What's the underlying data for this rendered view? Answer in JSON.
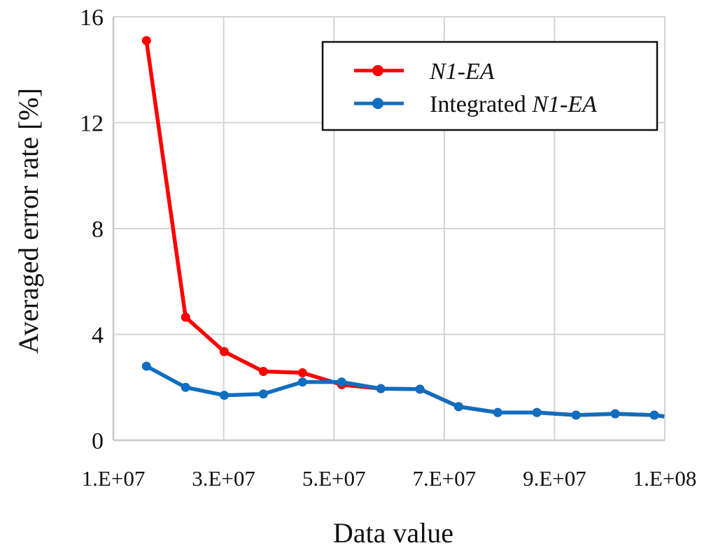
{
  "chart_data": {
    "type": "line",
    "title": "",
    "xlabel": "Data value",
    "ylabel": "Averaged error rate [%]",
    "xlim": [
      10000000,
      110000000
    ],
    "ylim": [
      0,
      16
    ],
    "grid": true,
    "legend_position": "top-right",
    "x_ticks": [
      {
        "value": 10000000,
        "label": "1.E+07"
      },
      {
        "value": 30000000,
        "label": "3.E+07"
      },
      {
        "value": 50000000,
        "label": "5.E+07"
      },
      {
        "value": 70000000,
        "label": "7.E+07"
      },
      {
        "value": 90000000,
        "label": "9.E+07"
      },
      {
        "value": 110000000,
        "label": "1.E+08"
      }
    ],
    "y_ticks": [
      {
        "value": 0,
        "label": "0"
      },
      {
        "value": 4,
        "label": "4"
      },
      {
        "value": 8,
        "label": "8"
      },
      {
        "value": 12,
        "label": "12"
      },
      {
        "value": 16,
        "label": "16"
      }
    ],
    "x": [
      16000000,
      23100000,
      30100000,
      37200000,
      44300000,
      51400000,
      58500000,
      65600000,
      72600000,
      79700000,
      86800000,
      93900000,
      101000000,
      108100000,
      109900000
    ],
    "series": [
      {
        "name": "N1-EA",
        "legend_parts": [
          {
            "text": "N1-EA",
            "italic": true
          }
        ],
        "color": "#ff0000",
        "values": [
          15.1,
          4.65,
          3.35,
          2.6,
          2.55,
          2.1,
          1.95,
          1.93,
          1.27,
          1.05,
          1.05,
          0.95,
          1.0,
          0.95,
          0.9
        ]
      },
      {
        "name": "Integrated N1-EA",
        "legend_parts": [
          {
            "text": "Integrated ",
            "italic": false
          },
          {
            "text": "N1-EA",
            "italic": true
          }
        ],
        "color": "#0f6ebf",
        "values": [
          2.8,
          2.0,
          1.7,
          1.75,
          2.2,
          2.2,
          1.95,
          1.93,
          1.27,
          1.05,
          1.05,
          0.95,
          1.0,
          0.95,
          0.9
        ]
      }
    ]
  }
}
